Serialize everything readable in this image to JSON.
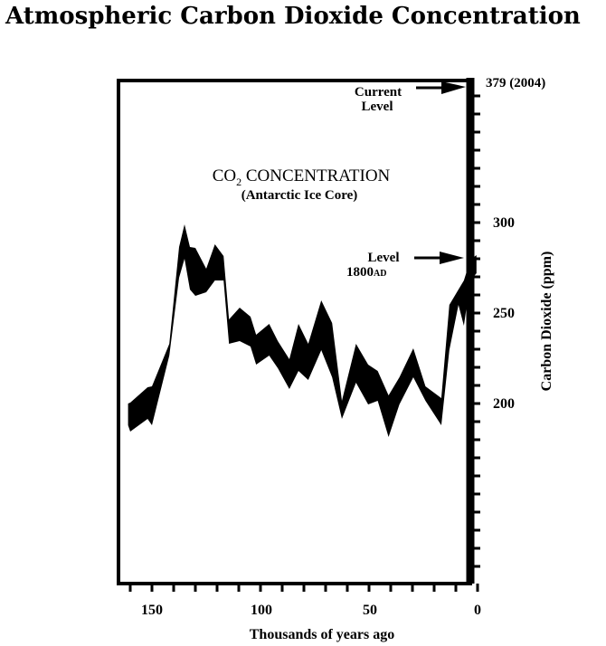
{
  "chart_data": {
    "type": "area",
    "title": "Atmospheric Carbon Dioxide Concentration",
    "xlabel": "Thousands of years ago",
    "ylabel": "Carbon Dioxide (ppm)",
    "xlim": [
      165,
      0
    ],
    "ylim": [
      100,
      379
    ],
    "x_ticks": [
      150,
      100,
      50,
      0
    ],
    "y_ticks": [
      200,
      250,
      300
    ],
    "top_label": "379 (2004)",
    "inner_title": {
      "main": "CO",
      "sub": "2",
      "rest": " CONCENTRATION",
      "subtitle": "(Antarctic Ice Core)"
    },
    "annotations": [
      {
        "text_line1": "Current",
        "text_line2": "Level",
        "value": 379
      },
      {
        "text_line1": "Level",
        "text_line2": "1800",
        "suffix": "AD",
        "value": 280
      }
    ],
    "series": [
      {
        "name": "upper",
        "x": [
          161,
          160,
          152,
          150,
          142,
          137.5,
          135,
          132.5,
          130,
          125,
          121,
          117,
          114.5,
          109.6,
          104.6,
          102,
          96,
          92,
          86.7,
          82.5,
          78,
          72,
          67,
          62.5,
          56,
          50.4,
          46,
          41,
          36,
          29.6,
          24,
          16.7,
          13,
          8.8,
          6.3,
          3.3,
          0.5
        ],
        "y": [
          200,
          200.5,
          209,
          209.5,
          233,
          286.5,
          299,
          286.5,
          286,
          274.5,
          288,
          281.5,
          246.5,
          253,
          248,
          238,
          244,
          234.5,
          224.5,
          244,
          233,
          257,
          244.5,
          201.5,
          233,
          221.5,
          218,
          204.5,
          214.5,
          230.5,
          209.5,
          203,
          254.5,
          263,
          268,
          279.5,
          282
        ]
      },
      {
        "name": "lower",
        "x": [
          161,
          160,
          152,
          150,
          142,
          137.5,
          135,
          132.5,
          130,
          125,
          121,
          117,
          114.5,
          109.6,
          104.6,
          102,
          96,
          92,
          86.7,
          82.5,
          78,
          72,
          67,
          62.5,
          56,
          50.4,
          46,
          41,
          36,
          29.6,
          24,
          16.7,
          13,
          8.8,
          6.3,
          3.3,
          0.5
        ],
        "y": [
          188,
          184.5,
          191.5,
          188,
          226.5,
          269.5,
          280,
          263,
          259.5,
          261.5,
          268,
          268,
          233,
          234.5,
          231.5,
          221.5,
          226.5,
          219.5,
          208,
          218,
          213,
          229.5,
          214.5,
          191.5,
          211.5,
          199.5,
          201.5,
          181.5,
          199.5,
          214.5,
          201.5,
          188,
          229.5,
          254.5,
          243,
          268,
          272
        ]
      }
    ]
  },
  "colors": {
    "ink": "#000000",
    "background": "#ffffff"
  }
}
